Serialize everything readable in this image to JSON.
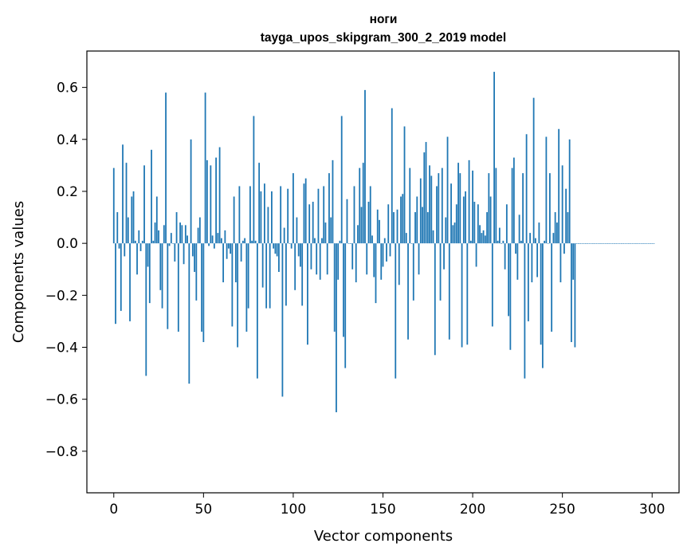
{
  "chart_data": {
    "type": "bar",
    "title": "ноги",
    "subtitle": "tayga_upos_skipgram_300_2_2019 model",
    "xlabel": "Vector components",
    "ylabel": "Components values",
    "xlim": [
      -15,
      315
    ],
    "ylim": [
      -0.96,
      0.74
    ],
    "xticks": [
      0,
      50,
      100,
      150,
      200,
      250,
      300
    ],
    "xtick_labels": [
      "0",
      "50",
      "100",
      "150",
      "200",
      "250",
      "300"
    ],
    "yticks": [
      -0.8,
      -0.6,
      -0.4,
      -0.2,
      0.0,
      0.2,
      0.4,
      0.6
    ],
    "ytick_labels": [
      "−0.8",
      "−0.6",
      "−0.4",
      "−0.2",
      "0.0",
      "0.2",
      "0.4",
      "0.6"
    ],
    "bar_color": "#1f77b4",
    "grid": false,
    "values": [
      0.29,
      -0.31,
      0.12,
      -0.02,
      -0.26,
      0.38,
      -0.05,
      0.31,
      0.1,
      -0.3,
      0.18,
      0.2,
      0.01,
      -0.12,
      0.05,
      -0.03,
      0.01,
      0.3,
      -0.51,
      -0.09,
      -0.23,
      0.36,
      0.01,
      0.08,
      0.18,
      0.05,
      -0.18,
      -0.25,
      0.07,
      0.58,
      -0.33,
      -0.01,
      0.04,
      0.0,
      -0.07,
      0.12,
      -0.34,
      0.08,
      0.07,
      -0.08,
      0.07,
      0.03,
      -0.54,
      0.4,
      -0.05,
      -0.11,
      -0.22,
      0.06,
      0.1,
      -0.34,
      -0.38,
      0.58,
      0.32,
      -0.01,
      0.3,
      0.03,
      -0.02,
      0.33,
      0.04,
      0.37,
      0.02,
      -0.15,
      0.05,
      -0.06,
      -0.02,
      -0.04,
      -0.32,
      0.18,
      -0.15,
      -0.4,
      0.22,
      -0.07,
      0.01,
      0.02,
      -0.34,
      -0.25,
      0.22,
      0.01,
      0.49,
      0.01,
      -0.52,
      0.31,
      0.2,
      -0.17,
      0.23,
      -0.25,
      0.14,
      -0.25,
      0.2,
      -0.02,
      -0.04,
      -0.05,
      -0.11,
      0.22,
      -0.59,
      0.06,
      -0.24,
      0.21,
      0.0,
      -0.02,
      0.27,
      -0.18,
      0.1,
      -0.05,
      -0.09,
      -0.24,
      0.23,
      0.25,
      -0.39,
      0.15,
      -0.1,
      0.16,
      0.02,
      -0.12,
      0.21,
      -0.14,
      0.02,
      0.22,
      0.08,
      -0.12,
      0.27,
      0.1,
      0.32,
      -0.34,
      -0.65,
      -0.14,
      0.01,
      0.49,
      -0.36,
      -0.48,
      0.17,
      0.0,
      0.0,
      -0.1,
      0.22,
      -0.15,
      0.07,
      0.29,
      0.14,
      0.31,
      0.59,
      -0.12,
      0.16,
      0.22,
      0.03,
      -0.13,
      -0.23,
      0.13,
      0.09,
      -0.14,
      -0.09,
      0.02,
      -0.07,
      0.15,
      -0.05,
      0.52,
      0.12,
      -0.52,
      0.13,
      -0.16,
      0.18,
      0.19,
      0.45,
      0.04,
      -0.37,
      0.29,
      0.0,
      -0.22,
      0.12,
      0.18,
      -0.12,
      0.25,
      0.14,
      0.35,
      0.39,
      0.12,
      0.3,
      0.26,
      0.05,
      -0.43,
      0.22,
      0.27,
      -0.22,
      0.29,
      -0.1,
      0.1,
      0.41,
      -0.37,
      0.23,
      0.07,
      0.08,
      0.15,
      0.31,
      0.27,
      -0.4,
      0.18,
      0.2,
      -0.39,
      0.32,
      0.01,
      0.28,
      0.16,
      -0.09,
      0.15,
      0.07,
      0.04,
      0.05,
      0.03,
      0.12,
      0.27,
      0.18,
      -0.32,
      0.66,
      0.29,
      0.01,
      0.06,
      0.0,
      0.01,
      -0.1,
      0.15,
      -0.28,
      -0.41,
      0.29,
      0.33,
      -0.04,
      -0.14,
      0.11,
      0.01,
      0.27,
      -0.52,
      0.42,
      -0.3,
      0.04,
      -0.15,
      0.56,
      0.02,
      -0.13,
      0.08,
      -0.39,
      -0.48,
      0.01,
      0.41,
      0.0,
      0.27,
      -0.34,
      0.04,
      0.12,
      0.08,
      0.44,
      -0.15,
      0.3,
      -0.04,
      0.21,
      0.12,
      0.4,
      -0.38,
      -0.14,
      -0.4,
      0.0,
      0.0,
      0.0,
      0.0,
      0.0,
      0.0,
      0.0,
      0.0,
      0.0,
      0.0,
      0.0,
      0.0,
      0.0,
      0.0,
      0.0,
      0.0,
      0.0,
      0.0,
      0.0,
      0.0,
      0.0,
      0.0,
      0.0,
      0.0,
      0.0,
      0.0,
      0.0,
      0.0,
      0.0,
      0.0,
      0.0,
      0.0,
      0.0,
      0.0,
      0.0,
      0.0,
      0.0,
      0.0,
      0.0,
      0.0,
      0.0,
      0.0,
      0.0,
      0.0
    ]
  }
}
